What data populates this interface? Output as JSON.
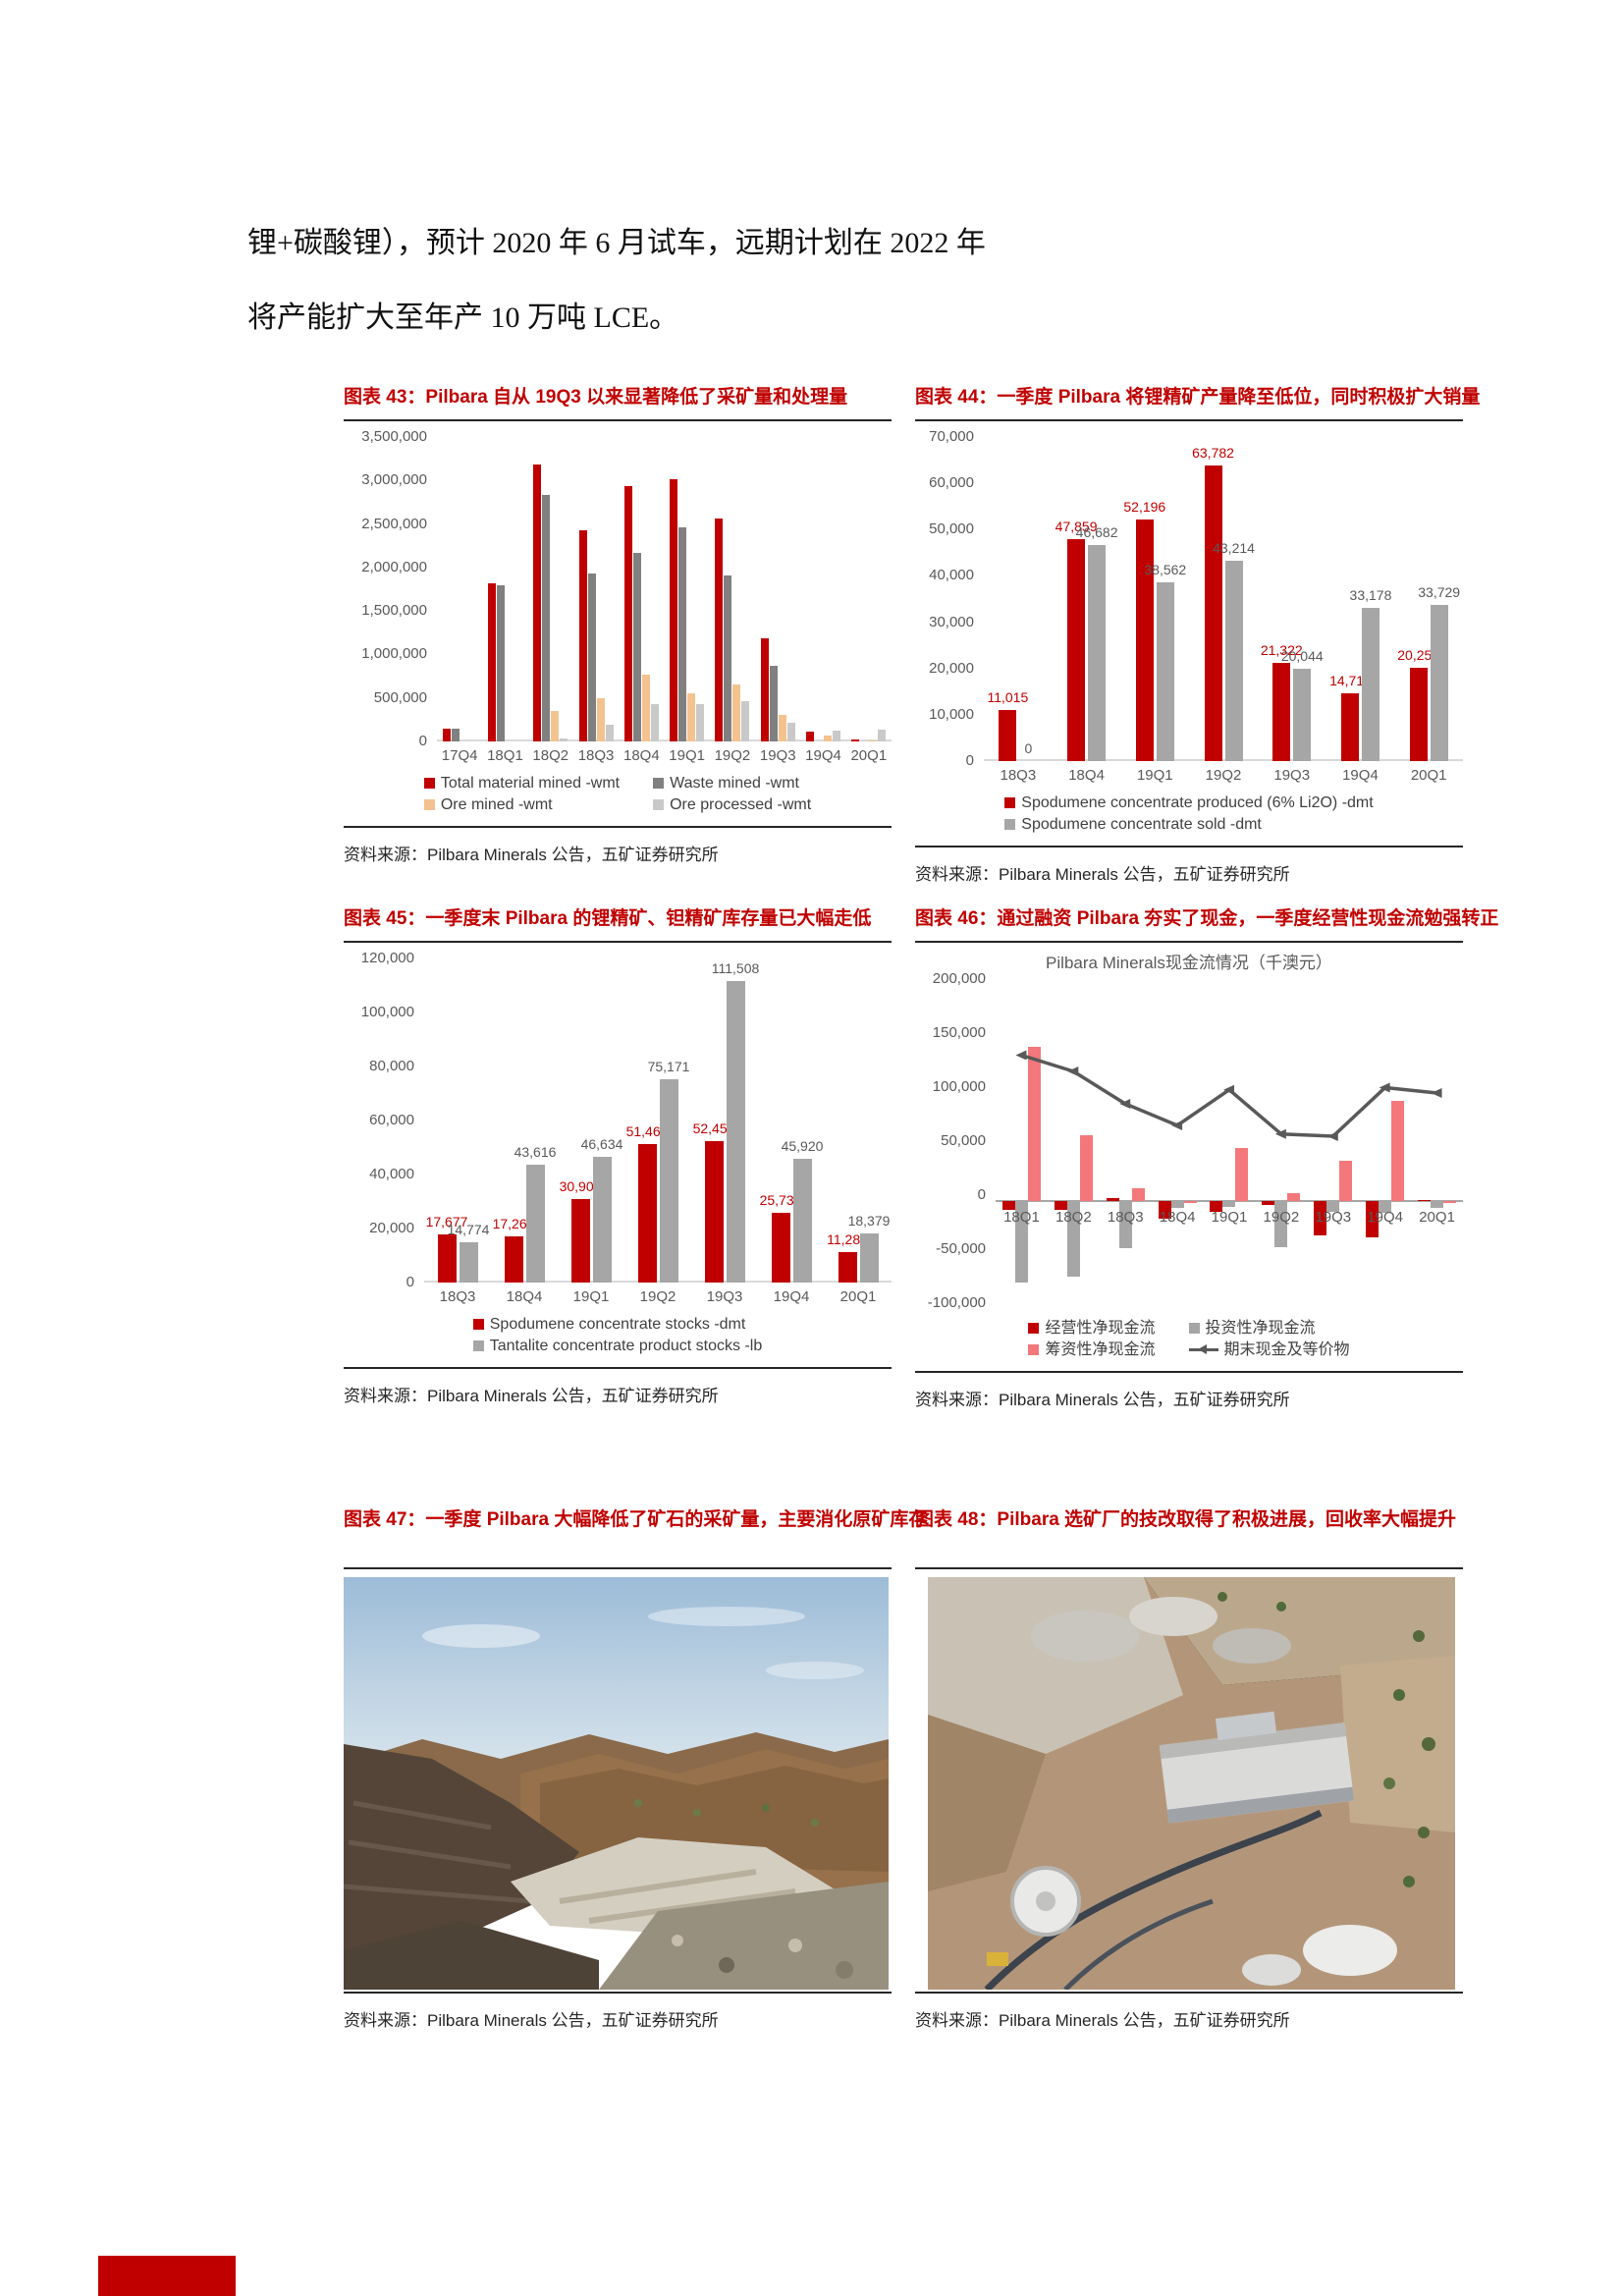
{
  "page": {
    "paragraph": [
      "锂+碳酸锂），预计 2020 年 6 月试车，远期计划在 2022 年",
      "将产能扩大至年产 10 万吨 LCE。"
    ]
  },
  "source_label": "资料来源：Pilbara Minerals 公告，五矿证券研究所",
  "figures": [
    {
      "title": "图表 43：Pilbara 自从 19Q3 以来显著降低了采矿量和处理量"
    },
    {
      "title": "图表 44：一季度 Pilbara 将锂精矿产量降至低位，同时积极扩大销量"
    },
    {
      "title": "图表 45：一季度末 Pilbara 的锂精矿、钽精矿库存量已大幅走低"
    },
    {
      "title": "图表 46：通过融资 Pilbara 夯实了现金，一季度经营性现金流勉强转正"
    },
    {
      "title": "图表 47：一季度 Pilbara 大幅降低了矿石的采矿量，主要消化原矿库存"
    },
    {
      "title": "图表 48：Pilbara 选矿厂的技改取得了积极进展，回收率大幅提升"
    }
  ],
  "colors": {
    "accent_red": "#C00000",
    "dark_gray_bar": "#808080",
    "mid_gray_bar": "#A6A6A6",
    "light_gray_bar": "#C9C9C9",
    "orange_bar": "#F4C28F",
    "pink_bar": "#F4777B",
    "line_gray": "#595959"
  },
  "chart_data": [
    {
      "type": "bar",
      "categories": [
        "17Q4",
        "18Q1",
        "18Q2",
        "18Q3",
        "18Q4",
        "19Q1",
        "19Q2",
        "19Q3",
        "19Q4",
        "20Q1"
      ],
      "series": [
        {
          "name": "Total material mined -wmt",
          "color": "#C00000",
          "values": [
            150000,
            1820000,
            3180000,
            2430000,
            2940000,
            3010000,
            2560000,
            1190000,
            110000,
            20000
          ]
        },
        {
          "name": "Waste mined -wmt",
          "color": "#808080",
          "values": [
            150000,
            1800000,
            2840000,
            1930000,
            2170000,
            2460000,
            1910000,
            875000,
            0,
            0
          ]
        },
        {
          "name": "Ore mined -wmt",
          "color": "#F4C28F",
          "values": [
            0,
            0,
            350000,
            500000,
            770000,
            550000,
            650000,
            310000,
            70000,
            10000
          ]
        },
        {
          "name": "Ore processed -wmt",
          "color": "#C9C9C9",
          "values": [
            0,
            0,
            30000,
            195000,
            430000,
            425000,
            460000,
            215000,
            125000,
            140000
          ]
        }
      ],
      "ylim": [
        0,
        3500000
      ],
      "ytick_step": 500000,
      "data_labels": false,
      "grid": false,
      "legend_position": "bottom"
    },
    {
      "type": "bar",
      "categories": [
        "18Q3",
        "18Q4",
        "19Q1",
        "19Q2",
        "19Q3",
        "19Q4",
        "20Q1"
      ],
      "series": [
        {
          "name": "Spodumene concentrate produced (6% Li2O) -dmt",
          "color": "#C00000",
          "values": [
            11015,
            47859,
            52196,
            63782,
            21322,
            14711,
            20251
          ]
        },
        {
          "name": "Spodumene concentrate sold -dmt",
          "color": "#A6A6A6",
          "values": [
            0,
            46682,
            38562,
            43214,
            20044,
            33178,
            33729
          ]
        }
      ],
      "ylim": [
        0,
        70000
      ],
      "ytick_step": 10000,
      "data_labels": true,
      "grid": false,
      "legend_position": "bottom"
    },
    {
      "type": "bar",
      "categories": [
        "18Q3",
        "18Q4",
        "19Q1",
        "19Q2",
        "19Q3",
        "19Q4",
        "20Q1"
      ],
      "series": [
        {
          "name": "Spodumene concentrate stocks -dmt",
          "color": "#C00000",
          "values": [
            17677,
            17266,
            30900,
            51468,
            52450,
            25730,
            11286
          ]
        },
        {
          "name": "Tantalite concentrate product stocks -lb",
          "color": "#A6A6A6",
          "values": [
            14774,
            43616,
            46634,
            75171,
            111508,
            45920,
            18379
          ]
        }
      ],
      "ylim": [
        0,
        120000
      ],
      "ytick_step": 20000,
      "data_labels": true,
      "grid": false,
      "legend_position": "bottom"
    },
    {
      "type": "combo",
      "title": "Pilbara Minerals现金流情况（千澳元）",
      "categories": [
        "18Q1",
        "18Q2",
        "18Q3",
        "18Q4",
        "19Q1",
        "19Q2",
        "19Q3",
        "19Q4",
        "20Q1"
      ],
      "series": [
        {
          "name": "经营性净现金流",
          "kind": "bar",
          "color": "#C00000",
          "values": [
            -8000,
            -8000,
            3000,
            -16000,
            -10000,
            -4000,
            -32000,
            -34000,
            1000
          ]
        },
        {
          "name": "投资性净现金流",
          "kind": "bar",
          "color": "#A6A6A6",
          "values": [
            -75000,
            -70000,
            -44000,
            -6000,
            -5000,
            -43000,
            -10000,
            -11000,
            -6000
          ]
        },
        {
          "name": "筹资性净现金流",
          "kind": "bar",
          "color": "#F4777B",
          "values": [
            143000,
            61000,
            12000,
            -2000,
            49000,
            7000,
            37000,
            93000,
            -2000
          ]
        },
        {
          "name": "期末现金及等价物",
          "kind": "line",
          "color": "#595959",
          "values": [
            135000,
            120000,
            90000,
            70000,
            103000,
            62000,
            60000,
            105000,
            100000
          ]
        }
      ],
      "ylim": [
        -100000,
        200000
      ],
      "ytick_step": 50000,
      "data_labels": false,
      "grid": false,
      "legend_position": "bottom"
    }
  ]
}
